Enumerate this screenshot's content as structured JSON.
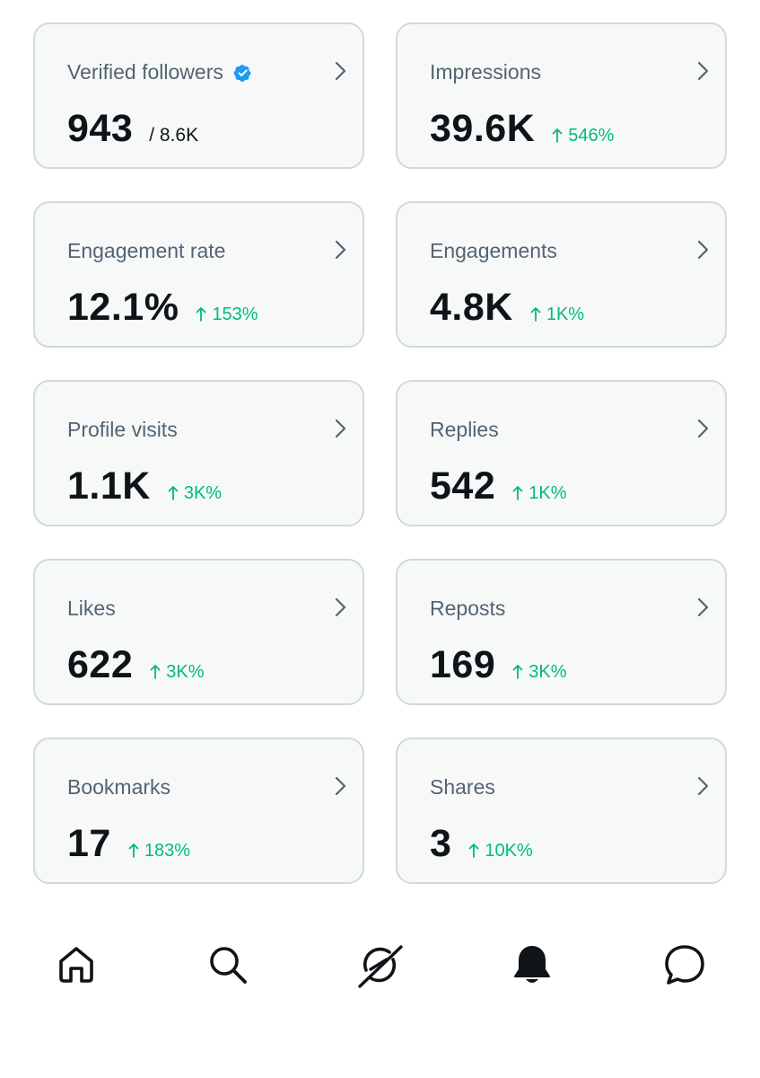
{
  "metrics": [
    {
      "title": "Verified followers",
      "value": "943",
      "secondary": "/ 8.6K",
      "delta": "",
      "icon": "chevron-right-icon"
    },
    {
      "title": "Impressions",
      "value": "39.6K",
      "secondary": "",
      "delta": "546%",
      "icon": "chevron-right-icon"
    },
    {
      "title": "Engagement rate",
      "value": "12.1%",
      "secondary": "",
      "delta": "153%",
      "icon": "chevron-right-icon"
    },
    {
      "title": "Engagements",
      "value": "4.8K",
      "secondary": "",
      "delta": "1K%",
      "icon": "chevron-right-icon"
    },
    {
      "title": "Profile visits",
      "value": "1.1K",
      "secondary": "",
      "delta": "3K%",
      "icon": "chevron-right-icon"
    },
    {
      "title": "Replies",
      "value": "542",
      "secondary": "",
      "delta": "1K%",
      "icon": "chevron-right-icon"
    },
    {
      "title": "Likes",
      "value": "622",
      "secondary": "",
      "delta": "3K%",
      "icon": "chevron-right-icon"
    },
    {
      "title": "Reposts",
      "value": "169",
      "secondary": "",
      "delta": "3K%",
      "icon": "chevron-right-icon"
    },
    {
      "title": "Bookmarks",
      "value": "17",
      "secondary": "",
      "delta": "183%",
      "icon": "chevron-right-icon"
    },
    {
      "title": "Shares",
      "value": "3",
      "secondary": "",
      "delta": "10K%",
      "icon": "chevron-right-icon"
    }
  ],
  "verified_badge_icon": "verified-badge-icon",
  "bottom_nav": [
    {
      "icon": "home-icon"
    },
    {
      "icon": "search-icon"
    },
    {
      "icon": "grok-icon"
    },
    {
      "icon": "notifications-bell-icon",
      "active": true
    },
    {
      "icon": "messages-icon"
    }
  ],
  "colors": {
    "card_background": "#f7f9f9",
    "card_border": "#cfd9de",
    "title_text": "#536471",
    "value_text": "#0f1419",
    "positive_delta": "#00ba7c",
    "verified_blue": "#1d9bf0"
  }
}
